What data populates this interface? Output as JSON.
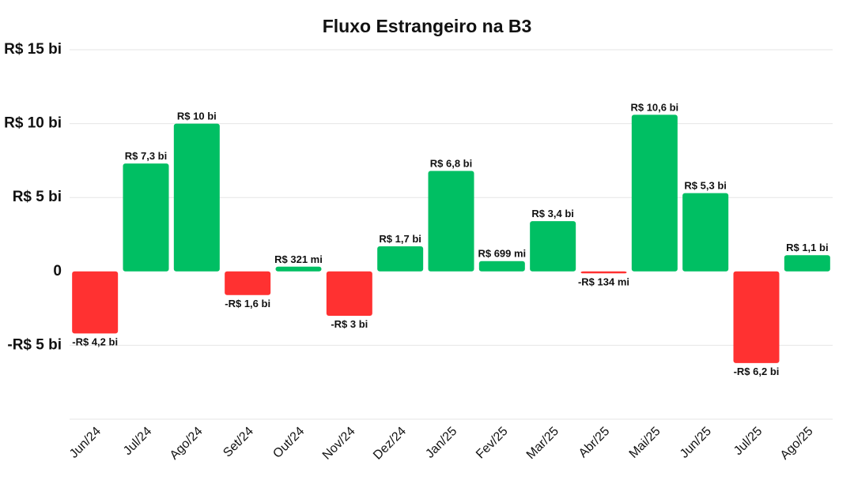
{
  "chart_data": {
    "type": "bar",
    "title": "Fluxo Estrangeiro na B3",
    "xlabel": "",
    "ylabel": "",
    "categories": [
      "Jun/24",
      "Jul/24",
      "Ago/24",
      "Set/24",
      "Out/24",
      "Nov/24",
      "Dez/24",
      "Jan/25",
      "Fev/25",
      "Mar/25",
      "Abr/25",
      "Mai/25",
      "Jun/25",
      "Jul/25",
      "Ago/25"
    ],
    "values": [
      -4.2,
      7.3,
      10,
      -1.6,
      0.321,
      -3,
      1.7,
      6.8,
      0.699,
      3.4,
      -0.134,
      10.6,
      5.3,
      -6.2,
      1.1
    ],
    "data_labels": [
      "-R$ 4,2 bi",
      "R$ 7,3 bi",
      "R$ 10 bi",
      "-R$ 1,6 bi",
      "R$ 321 mi",
      "-R$ 3 bi",
      "R$ 1,7 bi",
      "R$ 6,8 bi",
      "R$ 699 mi",
      "R$ 3,4 bi",
      "-R$ 134 mi",
      "R$ 10,6 bi",
      "R$ 5,3 bi",
      "-R$ 6,2 bi",
      "R$ 1,1 bi"
    ],
    "ylim": [
      -10,
      15
    ],
    "yticks": [
      15,
      10,
      5,
      0,
      -5
    ],
    "ytick_labels": [
      "R$ 15 bi",
      "R$ 10 bi",
      "R$ 5 bi",
      "0",
      "-R$ 5 bi"
    ],
    "grid": true,
    "colors": {
      "positive": "#00bf63",
      "negative": "#ff3131",
      "grid": "#e6e6e6"
    }
  }
}
